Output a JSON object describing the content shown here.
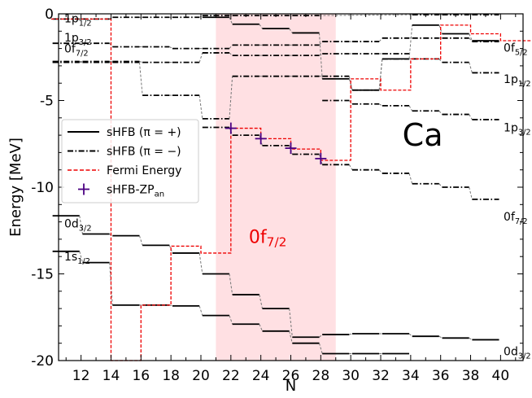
{
  "chart_data": {
    "type": "line",
    "xlabel": "N",
    "ylabel": "Energy [MeV]",
    "xlim": [
      10.5,
      41.5
    ],
    "ylim": [
      -20,
      0
    ],
    "xticks": [
      12,
      14,
      16,
      18,
      20,
      22,
      24,
      26,
      28,
      30,
      32,
      34,
      36,
      38,
      40
    ],
    "yticks": [
      0,
      -5,
      -10,
      -15,
      -20
    ],
    "ytick_labels": [
      "0",
      "-5",
      "-10",
      "-15",
      "-20"
    ],
    "grid": false,
    "element": "Ca",
    "shaded_region": {
      "x": [
        21,
        29
      ],
      "color": "#ffe0e3",
      "label_main": "0f",
      "label_sub": "7/2",
      "label_color": "#ee0000"
    },
    "colors": {
      "positive": "#000000",
      "negative": "#000000",
      "fermi": "#ee0000",
      "zp": "#4b0082",
      "connector": "#777777"
    },
    "legend": {
      "position": "center-left",
      "entries": [
        {
          "style": "solid",
          "text": "sHFB (π = +)"
        },
        {
          "style": "dashdot",
          "text": "sHFB (π = −)"
        },
        {
          "style": "fermi",
          "text": "Fermi Energy"
        },
        {
          "style": "cross",
          "text": "sHFB-ZP",
          "sub": "an"
        }
      ]
    },
    "level_labels": [
      {
        "main": "1p",
        "sub": "1/2",
        "x": 11,
        "y": -0.25
      },
      {
        "main": "1p",
        "sub": "3/2",
        "x": 11,
        "y": -1.35
      },
      {
        "main": "0f",
        "sub": "7/2",
        "x": 11,
        "y": -2.0
      },
      {
        "main": "0d",
        "sub": "3/2",
        "x": 11,
        "y": -12.1
      },
      {
        "main": "1s",
        "sub": "1/2",
        "x": 11,
        "y": -14.0
      },
      {
        "main": "0f",
        "sub": "5/2",
        "x": 40.2,
        "y": -1.95
      },
      {
        "main": "1p",
        "sub": "1/2",
        "x": 40.2,
        "y": -3.75
      },
      {
        "main": "1p",
        "sub": "3/2",
        "x": 40.2,
        "y": -6.55
      },
      {
        "main": "0f",
        "sub": "7/2",
        "x": 40.2,
        "y": -11.7
      },
      {
        "main": "0d",
        "sub": "3/2",
        "x": 40.2,
        "y": -19.45
      }
    ],
    "series": [
      {
        "style": "dashdot",
        "levels": [
          [
            11,
            -0.3
          ],
          [
            13,
            -0.3
          ],
          [
            15,
            -0.2
          ],
          [
            17,
            -0.2
          ],
          [
            19,
            -0.2
          ],
          [
            21,
            -0.1
          ],
          [
            23,
            -0.1
          ],
          [
            25,
            -0.1
          ],
          [
            27,
            -0.1
          ],
          [
            35,
            -0.05
          ],
          [
            37,
            -0.05
          ],
          [
            39,
            -0.05
          ]
        ]
      },
      {
        "style": "dashdot",
        "levels": [
          [
            11,
            -1.7
          ],
          [
            13,
            -1.7
          ],
          [
            15,
            -1.9
          ],
          [
            17,
            -1.9
          ],
          [
            19,
            -2.0
          ],
          [
            21,
            -2.0
          ],
          [
            23,
            -1.8
          ],
          [
            25,
            -1.8
          ],
          [
            27,
            -1.8
          ],
          [
            29,
            -1.6
          ],
          [
            31,
            -1.6
          ],
          [
            33,
            -1.4
          ],
          [
            35,
            -1.4
          ],
          [
            37,
            -1.4
          ],
          [
            39,
            -1.6
          ]
        ]
      },
      {
        "style": "dashdot",
        "levels": [
          [
            11,
            -2.75
          ],
          [
            13,
            -2.75
          ],
          [
            15,
            -2.75
          ],
          [
            17,
            -2.8
          ],
          [
            19,
            -2.8
          ],
          [
            21,
            -2.25
          ],
          [
            23,
            -2.4
          ],
          [
            25,
            -2.4
          ],
          [
            27,
            -2.4
          ],
          [
            29,
            -2.3
          ],
          [
            31,
            -2.3
          ],
          [
            33,
            -2.3
          ]
        ]
      },
      {
        "style": "dashdot",
        "levels": [
          [
            11,
            -2.8
          ],
          [
            13,
            -2.8
          ],
          [
            15,
            -2.8
          ],
          [
            17,
            -4.7
          ],
          [
            19,
            -4.7
          ],
          [
            21,
            -6.05
          ],
          [
            23,
            -3.6
          ],
          [
            25,
            -3.6
          ],
          [
            27,
            -3.6
          ],
          [
            29,
            -3.6
          ],
          [
            31,
            -4.4
          ],
          [
            33,
            -2.6
          ],
          [
            35,
            -2.6
          ],
          [
            37,
            -2.8
          ],
          [
            39,
            -3.4
          ]
        ]
      },
      {
        "style": "solid",
        "levels": [
          [
            21,
            -0.2
          ],
          [
            23,
            -0.6
          ],
          [
            25,
            -0.85
          ],
          [
            27,
            -1.1
          ],
          [
            29,
            -3.75
          ],
          [
            31,
            -4.4
          ],
          [
            33,
            -2.6
          ],
          [
            35,
            -0.65
          ],
          [
            37,
            -1.15
          ],
          [
            39,
            -1.55
          ]
        ]
      },
      {
        "style": "dashdot",
        "levels": [
          [
            21,
            -6.55
          ],
          [
            23,
            -7.0
          ],
          [
            25,
            -7.6
          ],
          [
            27,
            -8.1
          ],
          [
            29,
            -8.7
          ],
          [
            31,
            -9.0
          ],
          [
            33,
            -9.2
          ],
          [
            35,
            -9.8
          ],
          [
            37,
            -10.0
          ],
          [
            39,
            -10.7
          ]
        ]
      },
      {
        "style": "dashdot",
        "levels": [
          [
            29,
            -5.0
          ],
          [
            31,
            -5.2
          ],
          [
            33,
            -5.3
          ],
          [
            35,
            -5.6
          ],
          [
            37,
            -5.8
          ],
          [
            39,
            -6.1
          ]
        ]
      },
      {
        "style": "solid",
        "levels": [
          [
            11,
            -11.65
          ],
          [
            13,
            -12.7
          ],
          [
            15,
            -12.8
          ],
          [
            17,
            -13.35
          ],
          [
            19,
            -13.8
          ],
          [
            21,
            -15.0
          ],
          [
            23,
            -16.2
          ],
          [
            25,
            -17.0
          ],
          [
            27,
            -18.65
          ],
          [
            29,
            -18.5
          ],
          [
            31,
            -18.45
          ],
          [
            33,
            -18.45
          ],
          [
            35,
            -18.6
          ],
          [
            37,
            -18.7
          ],
          [
            39,
            -18.8
          ]
        ]
      },
      {
        "style": "solid",
        "levels": [
          [
            11,
            -13.7
          ],
          [
            13,
            -14.35
          ],
          [
            15,
            -16.8
          ],
          [
            17,
            -16.8
          ],
          [
            19,
            -16.85
          ],
          [
            21,
            -17.4
          ],
          [
            23,
            -17.9
          ],
          [
            25,
            -18.3
          ],
          [
            27,
            -19.0
          ],
          [
            29,
            -19.6
          ],
          [
            31,
            -19.6
          ],
          [
            33,
            -19.6
          ]
        ]
      }
    ],
    "fermi": [
      [
        11,
        -0.3
      ],
      [
        13,
        -0.3
      ],
      [
        15,
        -20
      ],
      [
        17,
        -16.8
      ],
      [
        19,
        -13.4
      ],
      [
        21,
        -13.8
      ],
      [
        23,
        -6.6
      ],
      [
        25,
        -7.2
      ],
      [
        27,
        -7.8
      ],
      [
        29,
        -8.45
      ],
      [
        31,
        -3.75
      ],
      [
        33,
        -4.4
      ],
      [
        35,
        -2.6
      ],
      [
        37,
        -0.65
      ],
      [
        39,
        -1.15
      ],
      [
        41,
        -1.55
      ]
    ],
    "zp_points": [
      {
        "x": 22,
        "y": -6.6
      },
      {
        "x": 24,
        "y": -7.2
      },
      {
        "x": 26,
        "y": -7.75
      },
      {
        "x": 28,
        "y": -8.35
      }
    ]
  }
}
